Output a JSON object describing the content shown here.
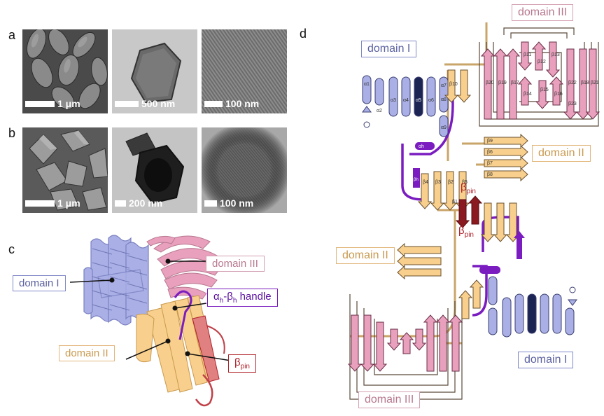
{
  "panels": {
    "a": {
      "label": "a",
      "images": [
        {
          "scale": "1 μm"
        },
        {
          "scale": "500 nm"
        },
        {
          "scale": "100 nm"
        }
      ]
    },
    "b": {
      "label": "b",
      "images": [
        {
          "scale": "1 μm"
        },
        {
          "scale": "200 nm"
        },
        {
          "scale": "100 nm"
        }
      ]
    },
    "c": {
      "label": "c",
      "domain_I": "domain I",
      "domain_II": "domain II",
      "domain_III": "domain III",
      "handle_a": "α",
      "handle_a_sub": "h",
      "handle_dash": "-β",
      "handle_b_sub": "h",
      "handle_rest": " handle",
      "pin": "β",
      "pin_sub": "pin"
    },
    "d": {
      "label": "d",
      "domain_I_top": "domain I",
      "domain_I_bottom": "domain I",
      "domain_II_top": "domain II",
      "domain_II_left": "domain II",
      "domain_III_top": "domain III",
      "domain_III_bottom": "domain III",
      "pin_top": "β",
      "pin_bottom": "β",
      "pin_sub": "pin",
      "helix_labels": [
        "α1",
        "α2",
        "α3",
        "α4",
        "α5",
        "α6",
        "α7",
        "α8",
        "α9"
      ],
      "handle_helix": "αh",
      "handle_strand": "βh",
      "strands_II": [
        "β1",
        "β2",
        "β3",
        "β4",
        "β5",
        "β6",
        "β7",
        "β8",
        "β9",
        "β10"
      ],
      "strands_III": [
        "β11",
        "β12",
        "β13",
        "β14",
        "β15",
        "β16",
        "β17",
        "β18",
        "β19",
        "β20",
        "β21",
        "β22",
        "β23"
      ]
    }
  },
  "colors": {
    "domain_I": "#aab0e6",
    "domain_I_dark": "#1c2454",
    "domain_I_text": "#5c62a0",
    "domain_II": "#f8cf8c",
    "domain_II_text": "#c99a50",
    "domain_III": "#e8a0bc",
    "domain_III_text": "#b87890",
    "handle": "#7a1cc0",
    "pin": "#b0222a"
  }
}
